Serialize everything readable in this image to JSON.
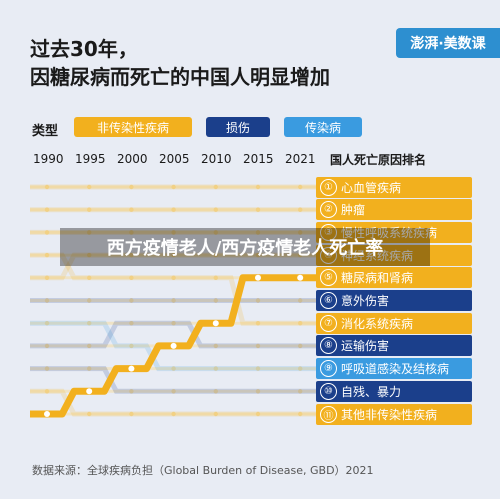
{
  "title_line1": "过去30年，",
  "title_line2": "因糖尿病而死亡的中国人明显增加",
  "brand": "澎湃·美数课",
  "legend": {
    "label": "类型",
    "items": [
      {
        "name": "非传染性疾病",
        "color": "#f2b01e"
      },
      {
        "name": "损伤",
        "color": "#1b3f8b"
      },
      {
        "name": "传染病",
        "color": "#3a9be0"
      }
    ]
  },
  "overlay_text": "西方疫情老人/西方疫情老人死亡率",
  "source": "数据来源：全球疾病负担（Global Burden of Disease, GBD）2021",
  "chart_data": {
    "type": "line",
    "title": "过去30年，因糖尿病而死亡的中国人明显增加",
    "x": [
      "1990",
      "1995",
      "2000",
      "2005",
      "2010",
      "2015",
      "2021"
    ],
    "rank_header": "国人死亡原因排名",
    "causes_2021": [
      {
        "rank": "①",
        "name": "心血管疾病",
        "type": "非传染性疾病"
      },
      {
        "rank": "②",
        "name": "肿瘤",
        "type": "非传染性疾病"
      },
      {
        "rank": "③",
        "name": "慢性呼吸系统疾病",
        "type": "非传染性疾病"
      },
      {
        "rank": "④",
        "name": "神经系统疾病",
        "type": "非传染性疾病"
      },
      {
        "rank": "⑤",
        "name": "糖尿病和肾病",
        "type": "非传染性疾病"
      },
      {
        "rank": "⑥",
        "name": "意外伤害",
        "type": "损伤"
      },
      {
        "rank": "⑦",
        "name": "消化系统疾病",
        "type": "非传染性疾病"
      },
      {
        "rank": "⑧",
        "name": "运输伤害",
        "type": "损伤"
      },
      {
        "rank": "⑨",
        "name": "呼吸道感染及结核病",
        "type": "传染病"
      },
      {
        "rank": "⑩",
        "name": "自残、暴力",
        "type": "损伤"
      },
      {
        "rank": "⑪",
        "name": "其他非传染性疾病",
        "type": "非传染性疾病"
      }
    ],
    "highlight": {
      "name": "糖尿病和肾病",
      "ranks": [
        11,
        10,
        9,
        8,
        7,
        5,
        5
      ]
    },
    "background_series": [
      {
        "ranks": [
          1,
          1,
          1,
          1,
          1,
          1,
          1
        ],
        "color": "#f2b01e"
      },
      {
        "ranks": [
          2,
          2,
          2,
          2,
          2,
          2,
          2
        ],
        "color": "#f2b01e"
      },
      {
        "ranks": [
          3,
          3,
          3,
          3,
          3,
          3,
          3
        ],
        "color": "#f2b01e"
      },
      {
        "ranks": [
          5,
          4,
          4,
          4,
          4,
          4,
          4
        ],
        "color": "#f2b01e"
      },
      {
        "ranks": [
          6,
          6,
          6,
          6,
          6,
          6,
          6
        ],
        "color": "#1b3f8b"
      },
      {
        "ranks": [
          4,
          5,
          5,
          5,
          5,
          7,
          7
        ],
        "color": "#f2b01e"
      },
      {
        "ranks": [
          8,
          8,
          7,
          7,
          8,
          8,
          8
        ],
        "color": "#1b3f8b"
      },
      {
        "ranks": [
          7,
          7,
          8,
          9,
          9,
          9,
          9
        ],
        "color": "#3a9be0"
      },
      {
        "ranks": [
          9,
          9,
          10,
          10,
          10,
          10,
          10
        ],
        "color": "#1b3f8b"
      },
      {
        "ranks": [
          10,
          11,
          11,
          11,
          11,
          11,
          11
        ],
        "color": "#f2b01e"
      }
    ]
  }
}
